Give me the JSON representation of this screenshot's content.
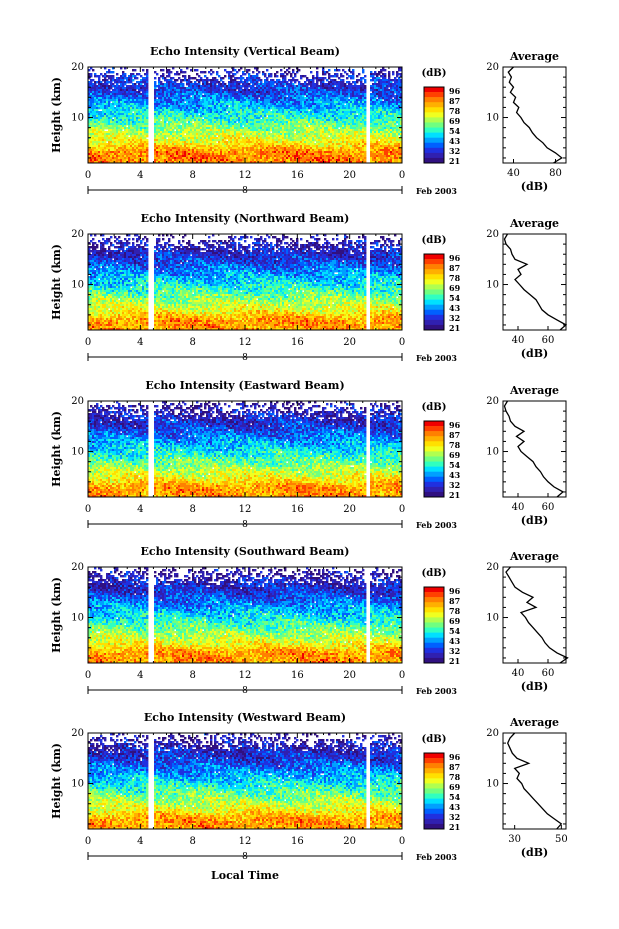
{
  "figure": {
    "xlabel_bottom": "Local Time",
    "date_label": "Feb 2003",
    "date_tick": "8",
    "colorbar_unit": "(dB)",
    "avg_title": "Average",
    "avg_xlabel": "(dB)",
    "ylabel": "Height (km)"
  },
  "colorbar": {
    "ticks": [
      "96",
      "87",
      "78",
      "69",
      "54",
      "43",
      "32",
      "21"
    ],
    "colors": [
      "#f00000",
      "#ff4000",
      "#ff8000",
      "#ffb000",
      "#ffe000",
      "#f0ff20",
      "#b0ff50",
      "#70ff80",
      "#30ffc0",
      "#00e0ff",
      "#00a0ff",
      "#0060ff",
      "#2030e0",
      "#3020b0",
      "#301080"
    ]
  },
  "chart_data": [
    {
      "type": "heatmap",
      "title": "Echo Intensity (Vertical Beam)",
      "xlabel": "Local Time",
      "ylabel": "Height (km)",
      "x_ticks": [
        "0",
        "4",
        "8",
        "12",
        "16",
        "20",
        "0"
      ],
      "y_ticks": [
        "10",
        "20"
      ],
      "xlim": [
        0,
        24
      ],
      "ylim": [
        1,
        20
      ],
      "gaps_hours": [
        [
          4.6,
          5.0
        ],
        [
          21.2,
          21.5
        ]
      ],
      "profile": {
        "xlabel": "(dB)",
        "x_ticks": [
          "40",
          "80"
        ],
        "xlim": [
          30,
          90
        ],
        "heights": [
          1,
          2,
          3,
          4,
          5,
          6,
          7,
          8,
          9,
          10,
          11,
          12,
          13,
          14,
          15,
          16,
          17,
          18,
          19,
          20
        ],
        "values": [
          78,
          86,
          80,
          72,
          68,
          62,
          58,
          55,
          50,
          47,
          43,
          45,
          40,
          42,
          37,
          40,
          36,
          38,
          35,
          40
        ]
      }
    },
    {
      "type": "heatmap",
      "title": "Echo Intensity (Northward Beam)",
      "xlabel": "Local Time",
      "ylabel": "Height (km)",
      "x_ticks": [
        "0",
        "4",
        "8",
        "12",
        "16",
        "20",
        "0"
      ],
      "y_ticks": [
        "10",
        "20"
      ],
      "xlim": [
        0,
        24
      ],
      "ylim": [
        1,
        20
      ],
      "gaps_hours": [
        [
          4.6,
          5.0
        ],
        [
          21.2,
          21.5
        ]
      ],
      "profile": {
        "xlabel": "(dB)",
        "x_ticks": [
          "40",
          "60"
        ],
        "xlim": [
          30,
          72
        ],
        "heights": [
          1,
          2,
          3,
          4,
          5,
          6,
          7,
          8,
          9,
          10,
          11,
          12,
          13,
          14,
          15,
          16,
          17,
          18,
          19,
          20
        ],
        "values": [
          68,
          72,
          66,
          60,
          56,
          54,
          52,
          48,
          44,
          41,
          38,
          42,
          40,
          46,
          38,
          36,
          35,
          32,
          31,
          33
        ]
      }
    },
    {
      "type": "heatmap",
      "title": "Echo Intensity (Eastward Beam)",
      "xlabel": "Local Time",
      "ylabel": "Height (km)",
      "x_ticks": [
        "0",
        "4",
        "8",
        "12",
        "16",
        "20",
        "0"
      ],
      "y_ticks": [
        "10",
        "20"
      ],
      "xlim": [
        0,
        24
      ],
      "ylim": [
        1,
        20
      ],
      "gaps_hours": [
        [
          4.6,
          5.0
        ],
        [
          21.2,
          21.5
        ]
      ],
      "profile": {
        "xlabel": "(dB)",
        "x_ticks": [
          "40",
          "60"
        ],
        "xlim": [
          30,
          72
        ],
        "heights": [
          1,
          2,
          3,
          4,
          5,
          6,
          7,
          8,
          9,
          10,
          11,
          12,
          13,
          14,
          15,
          16,
          17,
          18,
          19,
          20
        ],
        "values": [
          66,
          70,
          64,
          60,
          57,
          55,
          52,
          50,
          46,
          42,
          40,
          44,
          39,
          44,
          38,
          35,
          34,
          32,
          31,
          33
        ]
      }
    },
    {
      "type": "heatmap",
      "title": "Echo Intensity (Southward Beam)",
      "xlabel": "Local Time",
      "ylabel": "Height (km)",
      "x_ticks": [
        "0",
        "4",
        "8",
        "12",
        "16",
        "20",
        "0"
      ],
      "y_ticks": [
        "10",
        "20"
      ],
      "xlim": [
        0,
        24
      ],
      "ylim": [
        1,
        20
      ],
      "gaps_hours": [
        [
          4.6,
          5.0
        ],
        [
          21.2,
          21.5
        ]
      ],
      "profile": {
        "xlabel": "(dB)",
        "x_ticks": [
          "40",
          "60"
        ],
        "xlim": [
          30,
          72
        ],
        "heights": [
          1,
          2,
          3,
          4,
          5,
          6,
          7,
          8,
          9,
          10,
          11,
          12,
          13,
          14,
          15,
          16,
          17,
          18,
          19,
          20
        ],
        "values": [
          68,
          73,
          66,
          61,
          58,
          56,
          53,
          50,
          47,
          45,
          42,
          52,
          46,
          50,
          43,
          38,
          36,
          34,
          32,
          35
        ]
      }
    },
    {
      "type": "heatmap",
      "title": "Echo Intensity (Westward Beam)",
      "xlabel": "Local Time",
      "ylabel": "Height (km)",
      "x_ticks": [
        "0",
        "4",
        "8",
        "12",
        "16",
        "20",
        "0"
      ],
      "y_ticks": [
        "10",
        "20"
      ],
      "xlim": [
        0,
        24
      ],
      "ylim": [
        1,
        20
      ],
      "gaps_hours": [
        [
          4.6,
          5.0
        ],
        [
          21.2,
          21.5
        ]
      ],
      "profile": {
        "xlabel": "(dB)",
        "x_ticks": [
          "30",
          "50"
        ],
        "xlim": [
          25,
          52
        ],
        "heights": [
          1,
          2,
          3,
          4,
          5,
          6,
          7,
          8,
          9,
          10,
          11,
          12,
          13,
          14,
          15,
          16,
          17,
          18,
          19,
          20
        ],
        "values": [
          48,
          50,
          47,
          44,
          42,
          40,
          38,
          36,
          34,
          33,
          31,
          32,
          30,
          36,
          31,
          29,
          28,
          27,
          28,
          30
        ]
      }
    }
  ]
}
